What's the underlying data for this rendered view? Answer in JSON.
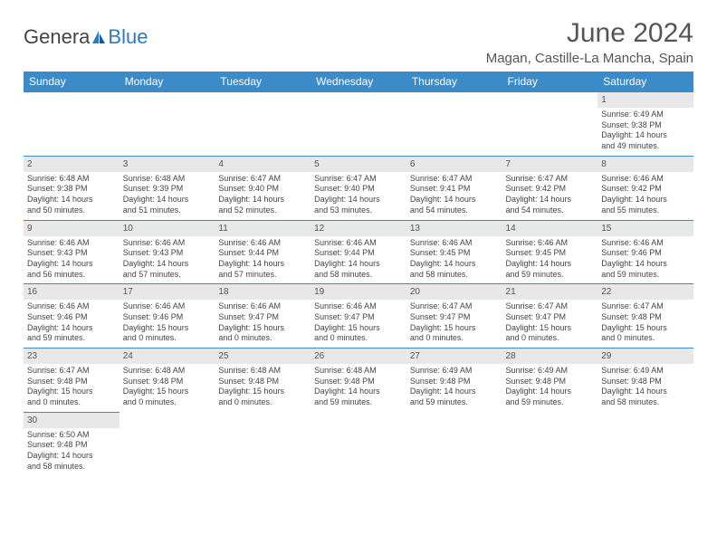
{
  "logo": {
    "part1": "Genera",
    "part2": "Blue"
  },
  "title": "June 2024",
  "location": "Magan, Castille-La Mancha, Spain",
  "weekdays": [
    "Sunday",
    "Monday",
    "Tuesday",
    "Wednesday",
    "Thursday",
    "Friday",
    "Saturday"
  ],
  "colors": {
    "header_bg": "#3b8bc9",
    "header_text": "#ffffff",
    "daynum_bg": "#e8e8e8",
    "border": "#3b8bc9",
    "text": "#444444",
    "logo_blue": "#2b7bbf"
  },
  "fonts": {
    "title_size": 30,
    "location_size": 15,
    "weekday_size": 12,
    "cell_size": 9
  },
  "weeks": [
    [
      null,
      null,
      null,
      null,
      null,
      null,
      {
        "day": "1",
        "sunrise": "Sunrise: 6:49 AM",
        "sunset": "Sunset: 9:38 PM",
        "daylight1": "Daylight: 14 hours",
        "daylight2": "and 49 minutes."
      }
    ],
    [
      {
        "day": "2",
        "sunrise": "Sunrise: 6:48 AM",
        "sunset": "Sunset: 9:38 PM",
        "daylight1": "Daylight: 14 hours",
        "daylight2": "and 50 minutes."
      },
      {
        "day": "3",
        "sunrise": "Sunrise: 6:48 AM",
        "sunset": "Sunset: 9:39 PM",
        "daylight1": "Daylight: 14 hours",
        "daylight2": "and 51 minutes."
      },
      {
        "day": "4",
        "sunrise": "Sunrise: 6:47 AM",
        "sunset": "Sunset: 9:40 PM",
        "daylight1": "Daylight: 14 hours",
        "daylight2": "and 52 minutes."
      },
      {
        "day": "5",
        "sunrise": "Sunrise: 6:47 AM",
        "sunset": "Sunset: 9:40 PM",
        "daylight1": "Daylight: 14 hours",
        "daylight2": "and 53 minutes."
      },
      {
        "day": "6",
        "sunrise": "Sunrise: 6:47 AM",
        "sunset": "Sunset: 9:41 PM",
        "daylight1": "Daylight: 14 hours",
        "daylight2": "and 54 minutes."
      },
      {
        "day": "7",
        "sunrise": "Sunrise: 6:47 AM",
        "sunset": "Sunset: 9:42 PM",
        "daylight1": "Daylight: 14 hours",
        "daylight2": "and 54 minutes."
      },
      {
        "day": "8",
        "sunrise": "Sunrise: 6:46 AM",
        "sunset": "Sunset: 9:42 PM",
        "daylight1": "Daylight: 14 hours",
        "daylight2": "and 55 minutes."
      }
    ],
    [
      {
        "day": "9",
        "sunrise": "Sunrise: 6:46 AM",
        "sunset": "Sunset: 9:43 PM",
        "daylight1": "Daylight: 14 hours",
        "daylight2": "and 56 minutes."
      },
      {
        "day": "10",
        "sunrise": "Sunrise: 6:46 AM",
        "sunset": "Sunset: 9:43 PM",
        "daylight1": "Daylight: 14 hours",
        "daylight2": "and 57 minutes."
      },
      {
        "day": "11",
        "sunrise": "Sunrise: 6:46 AM",
        "sunset": "Sunset: 9:44 PM",
        "daylight1": "Daylight: 14 hours",
        "daylight2": "and 57 minutes."
      },
      {
        "day": "12",
        "sunrise": "Sunrise: 6:46 AM",
        "sunset": "Sunset: 9:44 PM",
        "daylight1": "Daylight: 14 hours",
        "daylight2": "and 58 minutes."
      },
      {
        "day": "13",
        "sunrise": "Sunrise: 6:46 AM",
        "sunset": "Sunset: 9:45 PM",
        "daylight1": "Daylight: 14 hours",
        "daylight2": "and 58 minutes."
      },
      {
        "day": "14",
        "sunrise": "Sunrise: 6:46 AM",
        "sunset": "Sunset: 9:45 PM",
        "daylight1": "Daylight: 14 hours",
        "daylight2": "and 59 minutes."
      },
      {
        "day": "15",
        "sunrise": "Sunrise: 6:46 AM",
        "sunset": "Sunset: 9:46 PM",
        "daylight1": "Daylight: 14 hours",
        "daylight2": "and 59 minutes."
      }
    ],
    [
      {
        "day": "16",
        "sunrise": "Sunrise: 6:46 AM",
        "sunset": "Sunset: 9:46 PM",
        "daylight1": "Daylight: 14 hours",
        "daylight2": "and 59 minutes."
      },
      {
        "day": "17",
        "sunrise": "Sunrise: 6:46 AM",
        "sunset": "Sunset: 9:46 PM",
        "daylight1": "Daylight: 15 hours",
        "daylight2": "and 0 minutes."
      },
      {
        "day": "18",
        "sunrise": "Sunrise: 6:46 AM",
        "sunset": "Sunset: 9:47 PM",
        "daylight1": "Daylight: 15 hours",
        "daylight2": "and 0 minutes."
      },
      {
        "day": "19",
        "sunrise": "Sunrise: 6:46 AM",
        "sunset": "Sunset: 9:47 PM",
        "daylight1": "Daylight: 15 hours",
        "daylight2": "and 0 minutes."
      },
      {
        "day": "20",
        "sunrise": "Sunrise: 6:47 AM",
        "sunset": "Sunset: 9:47 PM",
        "daylight1": "Daylight: 15 hours",
        "daylight2": "and 0 minutes."
      },
      {
        "day": "21",
        "sunrise": "Sunrise: 6:47 AM",
        "sunset": "Sunset: 9:47 PM",
        "daylight1": "Daylight: 15 hours",
        "daylight2": "and 0 minutes."
      },
      {
        "day": "22",
        "sunrise": "Sunrise: 6:47 AM",
        "sunset": "Sunset: 9:48 PM",
        "daylight1": "Daylight: 15 hours",
        "daylight2": "and 0 minutes."
      }
    ],
    [
      {
        "day": "23",
        "sunrise": "Sunrise: 6:47 AM",
        "sunset": "Sunset: 9:48 PM",
        "daylight1": "Daylight: 15 hours",
        "daylight2": "and 0 minutes."
      },
      {
        "day": "24",
        "sunrise": "Sunrise: 6:48 AM",
        "sunset": "Sunset: 9:48 PM",
        "daylight1": "Daylight: 15 hours",
        "daylight2": "and 0 minutes."
      },
      {
        "day": "25",
        "sunrise": "Sunrise: 6:48 AM",
        "sunset": "Sunset: 9:48 PM",
        "daylight1": "Daylight: 15 hours",
        "daylight2": "and 0 minutes."
      },
      {
        "day": "26",
        "sunrise": "Sunrise: 6:48 AM",
        "sunset": "Sunset: 9:48 PM",
        "daylight1": "Daylight: 14 hours",
        "daylight2": "and 59 minutes."
      },
      {
        "day": "27",
        "sunrise": "Sunrise: 6:49 AM",
        "sunset": "Sunset: 9:48 PM",
        "daylight1": "Daylight: 14 hours",
        "daylight2": "and 59 minutes."
      },
      {
        "day": "28",
        "sunrise": "Sunrise: 6:49 AM",
        "sunset": "Sunset: 9:48 PM",
        "daylight1": "Daylight: 14 hours",
        "daylight2": "and 59 minutes."
      },
      {
        "day": "29",
        "sunrise": "Sunrise: 6:49 AM",
        "sunset": "Sunset: 9:48 PM",
        "daylight1": "Daylight: 14 hours",
        "daylight2": "and 58 minutes."
      }
    ],
    [
      {
        "day": "30",
        "sunrise": "Sunrise: 6:50 AM",
        "sunset": "Sunset: 9:48 PM",
        "daylight1": "Daylight: 14 hours",
        "daylight2": "and 58 minutes."
      },
      null,
      null,
      null,
      null,
      null,
      null
    ]
  ]
}
